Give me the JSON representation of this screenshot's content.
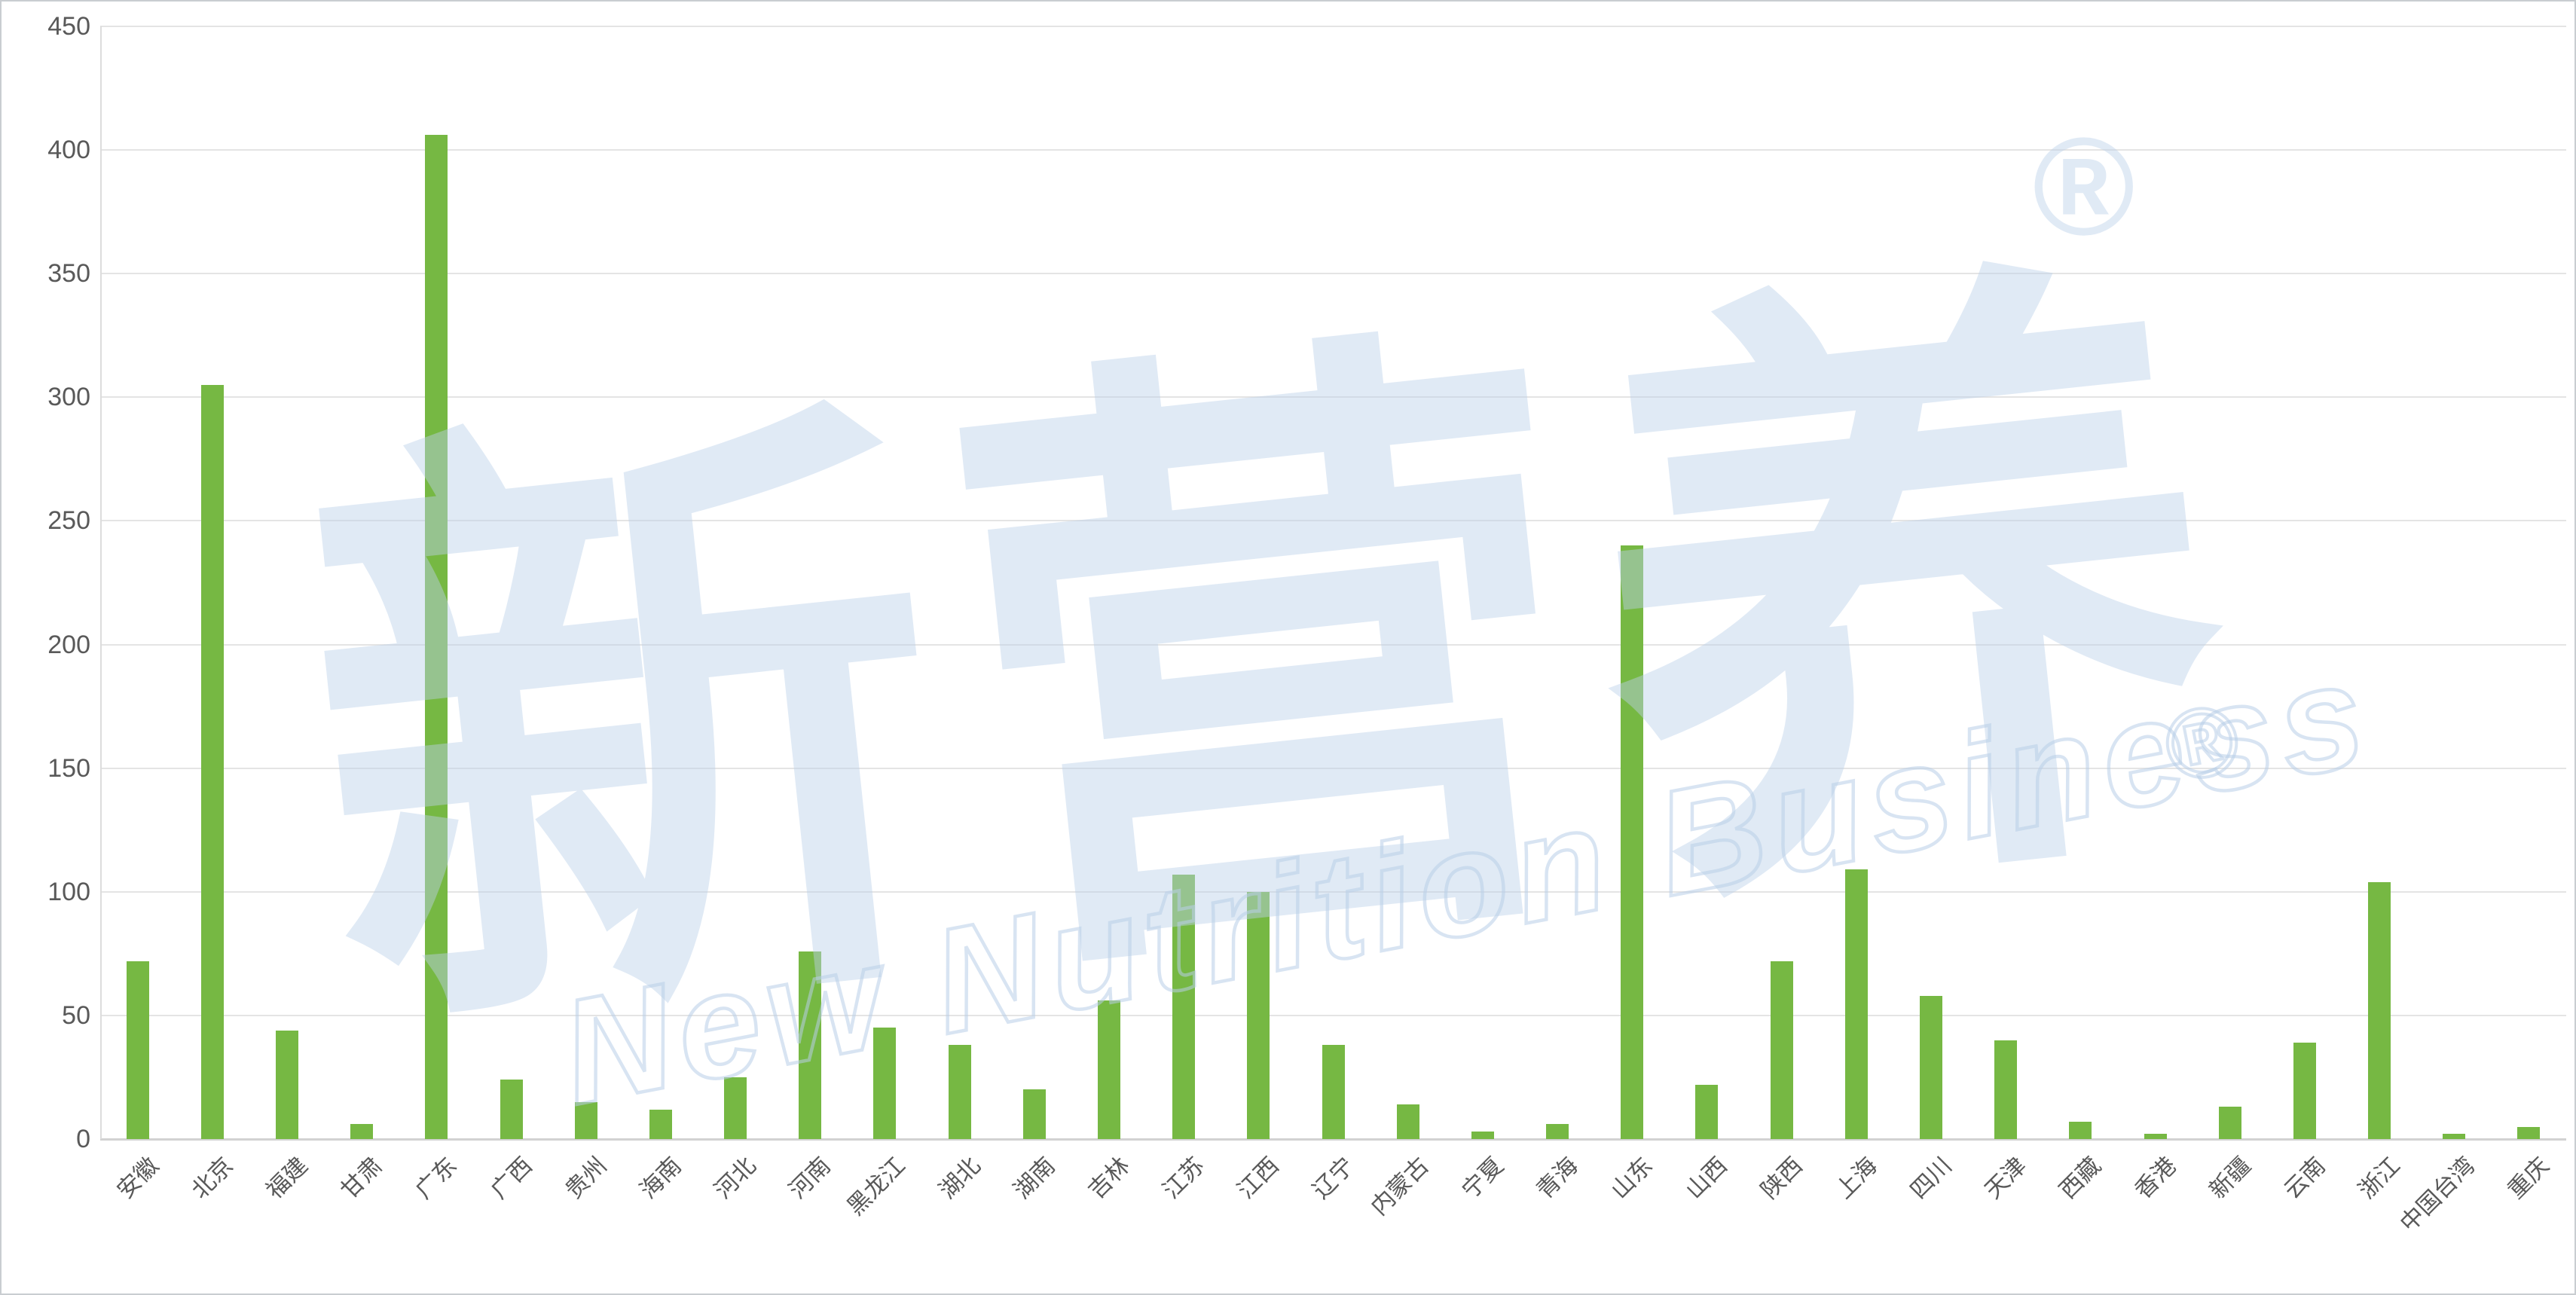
{
  "chart_data": {
    "type": "bar",
    "title": "",
    "xlabel": "",
    "ylabel": "",
    "categories": [
      "安徽",
      "北京",
      "福建",
      "甘肃",
      "广东",
      "广西",
      "贵州",
      "海南",
      "河北",
      "河南",
      "黑龙江",
      "湖北",
      "湖南",
      "吉林",
      "江苏",
      "江西",
      "辽宁",
      "内蒙古",
      "宁夏",
      "青海",
      "山东",
      "山西",
      "陕西",
      "上海",
      "四川",
      "天津",
      "西藏",
      "香港",
      "新疆",
      "云南",
      "浙江",
      "中国台湾",
      "重庆"
    ],
    "values": [
      72,
      305,
      44,
      6,
      406,
      24,
      15,
      12,
      25,
      76,
      45,
      38,
      20,
      56,
      107,
      100,
      38,
      14,
      3,
      6,
      240,
      22,
      72,
      109,
      58,
      40,
      7,
      2,
      13,
      39,
      104,
      2,
      5
    ],
    "ylim": [
      0,
      450
    ],
    "yticks": [
      0,
      50,
      100,
      150,
      200,
      250,
      300,
      350,
      400,
      450
    ],
    "grid": "horizontal",
    "legend": "none",
    "bar_color": "#76b843",
    "gridline_color": "#e4e4e4",
    "tick_label_color": "#595959"
  },
  "watermark": {
    "cjk_text": "新营养",
    "latin_text": "New Nutrition Business",
    "reg_mark": "®",
    "color": "#b9cfe8"
  }
}
